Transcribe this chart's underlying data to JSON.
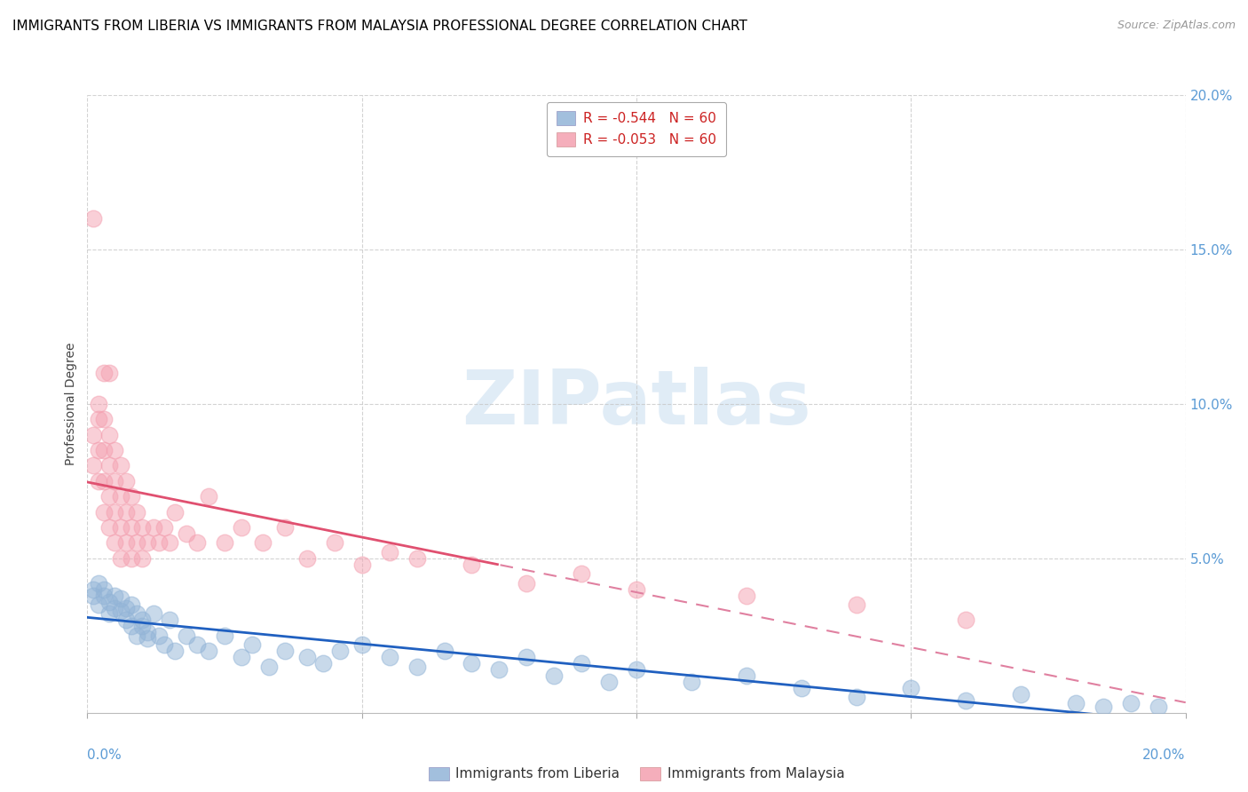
{
  "title": "IMMIGRANTS FROM LIBERIA VS IMMIGRANTS FROM MALAYSIA PROFESSIONAL DEGREE CORRELATION CHART",
  "source": "Source: ZipAtlas.com",
  "ylabel": "Professional Degree",
  "liberia_color": "#92b4d7",
  "malaysia_color": "#f4a0b0",
  "liberia_line_color": "#2060c0",
  "malaysia_line_solid_color": "#e05070",
  "malaysia_line_dash_color": "#e080a0",
  "axis_color": "#5b9bd5",
  "grid_color": "#c8c8c8",
  "title_fontsize": 11,
  "source_fontsize": 9,
  "xlim": [
    0.0,
    0.2
  ],
  "ylim": [
    0.0,
    0.2
  ],
  "liberia_x": [
    0.001,
    0.001,
    0.002,
    0.002,
    0.003,
    0.003,
    0.004,
    0.004,
    0.005,
    0.005,
    0.006,
    0.006,
    0.007,
    0.007,
    0.008,
    0.008,
    0.009,
    0.009,
    0.01,
    0.01,
    0.011,
    0.011,
    0.012,
    0.013,
    0.014,
    0.015,
    0.016,
    0.018,
    0.02,
    0.022,
    0.025,
    0.028,
    0.03,
    0.033,
    0.036,
    0.04,
    0.043,
    0.046,
    0.05,
    0.055,
    0.06,
    0.065,
    0.07,
    0.075,
    0.08,
    0.085,
    0.09,
    0.095,
    0.1,
    0.11,
    0.12,
    0.13,
    0.14,
    0.15,
    0.16,
    0.17,
    0.18,
    0.185,
    0.19,
    0.195
  ],
  "liberia_y": [
    0.04,
    0.038,
    0.042,
    0.035,
    0.04,
    0.038,
    0.036,
    0.032,
    0.038,
    0.034,
    0.033,
    0.037,
    0.03,
    0.034,
    0.035,
    0.028,
    0.032,
    0.025,
    0.03,
    0.028,
    0.026,
    0.024,
    0.032,
    0.025,
    0.022,
    0.03,
    0.02,
    0.025,
    0.022,
    0.02,
    0.025,
    0.018,
    0.022,
    0.015,
    0.02,
    0.018,
    0.016,
    0.02,
    0.022,
    0.018,
    0.015,
    0.02,
    0.016,
    0.014,
    0.018,
    0.012,
    0.016,
    0.01,
    0.014,
    0.01,
    0.012,
    0.008,
    0.005,
    0.008,
    0.004,
    0.006,
    0.003,
    0.002,
    0.003,
    0.002
  ],
  "malaysia_x": [
    0.001,
    0.001,
    0.001,
    0.002,
    0.002,
    0.002,
    0.002,
    0.003,
    0.003,
    0.003,
    0.003,
    0.003,
    0.004,
    0.004,
    0.004,
    0.004,
    0.004,
    0.005,
    0.005,
    0.005,
    0.005,
    0.006,
    0.006,
    0.006,
    0.006,
    0.007,
    0.007,
    0.007,
    0.008,
    0.008,
    0.008,
    0.009,
    0.009,
    0.01,
    0.01,
    0.011,
    0.012,
    0.013,
    0.014,
    0.015,
    0.016,
    0.018,
    0.02,
    0.022,
    0.025,
    0.028,
    0.032,
    0.036,
    0.04,
    0.045,
    0.05,
    0.055,
    0.06,
    0.07,
    0.08,
    0.09,
    0.1,
    0.12,
    0.14,
    0.16
  ],
  "malaysia_y": [
    0.08,
    0.09,
    0.16,
    0.075,
    0.085,
    0.095,
    0.1,
    0.065,
    0.075,
    0.085,
    0.095,
    0.11,
    0.06,
    0.07,
    0.08,
    0.09,
    0.11,
    0.055,
    0.065,
    0.075,
    0.085,
    0.05,
    0.06,
    0.07,
    0.08,
    0.055,
    0.065,
    0.075,
    0.05,
    0.06,
    0.07,
    0.055,
    0.065,
    0.05,
    0.06,
    0.055,
    0.06,
    0.055,
    0.06,
    0.055,
    0.065,
    0.058,
    0.055,
    0.07,
    0.055,
    0.06,
    0.055,
    0.06,
    0.05,
    0.055,
    0.048,
    0.052,
    0.05,
    0.048,
    0.042,
    0.045,
    0.04,
    0.038,
    0.035,
    0.03
  ]
}
